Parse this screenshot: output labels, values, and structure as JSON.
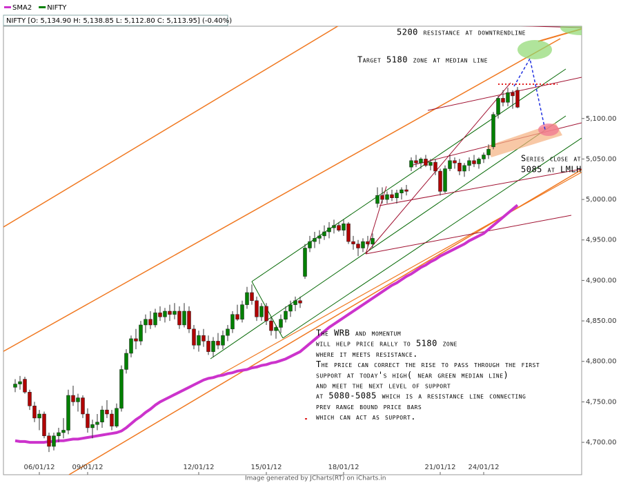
{
  "chart_data": {
    "type": "candlestick",
    "info": "NIFTY [O: 5,134.90  H: 5,138.85  L: 5,112.80  C: 5,113.95] (-0.40%)",
    "credit": "Image generated by JCharts(RT) on iCharts.in",
    "categories": [
      null,
      null,
      null,
      null,
      null,
      "06/01/12",
      null,
      null,
      null,
      null,
      null,
      null,
      null,
      null,
      null,
      "09/01/12",
      null,
      null,
      null,
      null,
      null,
      null,
      null,
      null,
      null,
      null,
      null,
      null,
      null,
      null,
      null,
      null,
      null,
      null,
      null,
      null,
      null,
      null,
      "12/01/12",
      null,
      null,
      null,
      null,
      null,
      null,
      null,
      null,
      null,
      null,
      null,
      null,
      null,
      "15/01/12",
      null,
      null,
      null,
      null,
      null,
      null,
      null,
      null,
      null,
      null,
      null,
      null,
      null,
      null,
      null,
      "18/01/12",
      null,
      null,
      null,
      null,
      null,
      null,
      null,
      null,
      null,
      null,
      null,
      null,
      null,
      null,
      null,
      null,
      null,
      null,
      null,
      "21/01/12",
      null,
      null,
      null,
      null,
      null,
      null,
      null,
      null,
      "24/01/12",
      null,
      null,
      null,
      null,
      null,
      null,
      null
    ],
    "series": [
      {
        "name": "SMA2",
        "type": "line",
        "color": "#cc33cc",
        "values": [
          4702,
          4701,
          4701,
          4700,
          4700,
          4700,
          4700,
          4701,
          4701,
          4702,
          4702,
          4703,
          4704,
          4704,
          4705,
          4706,
          4707,
          4708,
          4709,
          4710,
          4711,
          4712,
          4714,
          4718,
          4723,
          4728,
          4732,
          4737,
          4741,
          4746,
          4750,
          4753,
          4756,
          4759,
          4762,
          4765,
          4768,
          4771,
          4774,
          4777,
          4779,
          4780,
          4782,
          4783,
          4785,
          4786,
          4788,
          4789,
          4790,
          4792,
          4793,
          4795,
          4796,
          4798,
          4799,
          4801,
          4803,
          4806,
          4809,
          4812,
          4817,
          4822,
          4827,
          4832,
          4837,
          4842,
          4846,
          4850,
          4854,
          4858,
          4862,
          4866,
          4870,
          4874,
          4878,
          4882,
          4886,
          4890,
          4894,
          4897,
          4901,
          4905,
          4908,
          4912,
          4916,
          4919,
          4923,
          4926,
          4930,
          4933,
          4936,
          4939,
          4942,
          4945,
          4949,
          4952,
          4955,
          4958,
          4963,
          4968,
          4973,
          4978,
          4983,
          4988,
          4993
        ]
      },
      {
        "name": "NIFTY",
        "type": "candlestick",
        "color": "#008000",
        "up_color": "#008000",
        "down_color": "#b00000",
        "open": [
          4768,
          4772,
          4778,
          4762,
          4745,
          4730,
          4735,
          4708,
          4695,
          4708,
          4712,
          4715,
          4758,
          4750,
          4755,
          4735,
          4718,
          4722,
          4725,
          4740,
          4735,
          4720,
          4742,
          4790,
          4810,
          4828,
          4825,
          4845,
          4852,
          4845,
          4860,
          4855,
          4862,
          4858,
          4862,
          4845,
          4862,
          4840,
          4820,
          4832,
          4825,
          4812,
          4825,
          4820,
          4832,
          4840,
          4858,
          4852,
          4870,
          4885,
          4875,
          4855,
          4868,
          4850,
          4838,
          4842,
          4852,
          4862,
          4870,
          4875,
          4905,
          4940,
          4948,
          4952,
          4955,
          4960,
          4965,
          4968,
          4962,
          4970,
          4948,
          4945,
          4940,
          4948,
          4945,
          4995,
          5005,
          5000,
          5006,
          5002,
          5008,
          5012,
          5040,
          5048,
          5045,
          5050,
          5042,
          5046,
          5035,
          5010,
          5038,
          5048,
          5045,
          5035,
          5042,
          5048,
          5044,
          5050,
          5055,
          5065,
          5105,
          5125,
          5120,
          5132,
          5134.9
        ],
        "high": [
          4778,
          4782,
          4781,
          4765,
          4750,
          4740,
          4738,
          4712,
          4712,
          4718,
          4730,
          4765,
          4770,
          4760,
          4758,
          4742,
          4728,
          4735,
          4745,
          4752,
          4740,
          4748,
          4795,
          4815,
          4832,
          4840,
          4850,
          4858,
          4862,
          4865,
          4868,
          4866,
          4870,
          4872,
          4868,
          4872,
          4868,
          4845,
          4838,
          4840,
          4832,
          4830,
          4835,
          4838,
          4845,
          4862,
          4870,
          4875,
          4892,
          4895,
          4880,
          4872,
          4872,
          4855,
          4845,
          4858,
          4868,
          4875,
          4880,
          4880,
          4945,
          4955,
          4960,
          4962,
          4968,
          4972,
          4975,
          4972,
          4975,
          4972,
          4955,
          4950,
          4952,
          4955,
          4958,
          5015,
          5015,
          5010,
          5012,
          5012,
          5015,
          5018,
          5052,
          5055,
          5052,
          5055,
          5050,
          5050,
          5038,
          5042,
          5055,
          5052,
          5050,
          5045,
          5052,
          5055,
          5052,
          5058,
          5068,
          5108,
          5128,
          5135,
          5138,
          5135,
          5138.85
        ],
        "low": [
          4762,
          4765,
          4760,
          4740,
          4725,
          4715,
          4705,
          4688,
          4690,
          4700,
          4705,
          4710,
          4745,
          4738,
          4730,
          4712,
          4705,
          4715,
          4718,
          4730,
          4715,
          4718,
          4738,
          4785,
          4805,
          4815,
          4820,
          4835,
          4840,
          4842,
          4850,
          4848,
          4850,
          4852,
          4840,
          4842,
          4835,
          4815,
          4812,
          4818,
          4808,
          4805,
          4815,
          4815,
          4825,
          4835,
          4850,
          4848,
          4865,
          4870,
          4850,
          4850,
          4845,
          4832,
          4828,
          4835,
          4848,
          4855,
          4862,
          4866,
          4902,
          4935,
          4940,
          4945,
          4950,
          4952,
          4958,
          4960,
          4955,
          4945,
          4938,
          4930,
          4935,
          4940,
          4940,
          4990,
          4995,
          4995,
          4998,
          4995,
          5000,
          5005,
          5035,
          5040,
          5038,
          5040,
          5036,
          5030,
          5005,
          5008,
          5035,
          5038,
          5030,
          5028,
          5035,
          5040,
          5038,
          5045,
          5050,
          5062,
          5100,
          5115,
          5115,
          5112,
          5112.8
        ],
        "close": [
          4772,
          4775,
          4762,
          4745,
          4730,
          4735,
          4708,
          4695,
          4708,
          4712,
          4715,
          4758,
          4750,
          4755,
          4735,
          4718,
          4722,
          4725,
          4740,
          4735,
          4720,
          4742,
          4790,
          4810,
          4828,
          4825,
          4845,
          4852,
          4845,
          4860,
          4855,
          4862,
          4858,
          4862,
          4845,
          4862,
          4840,
          4820,
          4832,
          4825,
          4812,
          4825,
          4820,
          4832,
          4840,
          4858,
          4852,
          4870,
          4885,
          4875,
          4855,
          4868,
          4850,
          4838,
          4842,
          4852,
          4862,
          4870,
          4875,
          4872,
          4940,
          4948,
          4952,
          4955,
          4960,
          4965,
          4968,
          4962,
          4970,
          4948,
          4945,
          4940,
          4948,
          4945,
          4952,
          5005,
          5000,
          5006,
          5002,
          5008,
          5012,
          5010,
          5048,
          5045,
          5050,
          5042,
          5046,
          5035,
          5010,
          5038,
          5048,
          5045,
          5035,
          5042,
          5048,
          5044,
          5050,
          5055,
          5062,
          5105,
          5125,
          5120,
          5132,
          5128,
          5113.95
        ]
      }
    ],
    "ylim": [
      4660,
      5214
    ],
    "yticks": [
      {
        "value": 4700,
        "label": "4,700.00"
      },
      {
        "value": 4750,
        "label": "4,750.00"
      },
      {
        "value": 4800,
        "label": "4,800.00"
      },
      {
        "value": 4850,
        "label": "4,850.00"
      },
      {
        "value": 4900,
        "label": "4,900.00"
      },
      {
        "value": 4950,
        "label": "4,950.00"
      },
      {
        "value": 5000,
        "label": "5,000.00"
      },
      {
        "value": 5050,
        "label": "5,050.00"
      },
      {
        "value": 5100,
        "label": "5,100.00"
      }
    ],
    "annotations": [
      {
        "lines": [
          "5200 resistance at downtrendline"
        ]
      },
      {
        "lines": [
          "Target 5180 zone at median line"
        ]
      },
      {
        "lines": [
          "Series close at",
          "5085 at LMLH"
        ]
      },
      {
        "lines": [
          "The WRB and momentum",
          "will help price rally to 5180 zone",
          "where it meets resistance.",
          "The price can correct the rise to pass through the first",
          "support at today's high( near green median line)",
          "and meet the next level of support",
          "at 5080-5085 which is a resistance line connecting",
          "prev range bound price bars",
          "which can act as support."
        ]
      }
    ]
  }
}
